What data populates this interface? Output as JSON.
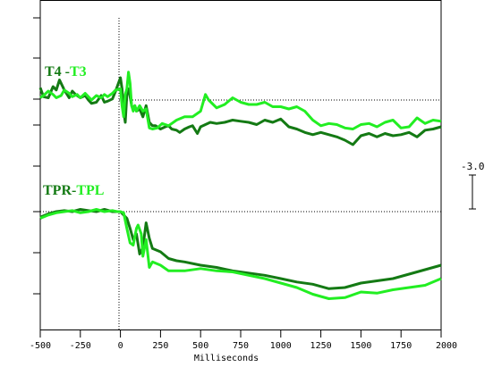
{
  "chart_data": {
    "type": "line",
    "xlabel": "Milliseconds",
    "xlim": [
      -500,
      2000
    ],
    "xticks": [
      "-500",
      "-250",
      "0",
      "250",
      "500",
      "750",
      "1000",
      "1250",
      "1500",
      "1750",
      "2000"
    ],
    "scale_bar_label": "-3.0",
    "colors": {
      "dark": "#147a14",
      "light": "#22ee22"
    },
    "panels": [
      {
        "label_parts": [
          {
            "text": "T4",
            "color": "#147a14"
          },
          {
            "text": " -",
            "color": "#147a14"
          },
          {
            "text": "T3",
            "color": "#22ee22"
          }
        ],
        "baseline": 0,
        "series": [
          {
            "color": "#147a14",
            "x": [
              -500,
              -480,
              -450,
              -420,
              -400,
              -380,
              -350,
              -320,
              -300,
              -280,
              -250,
              -220,
              -200,
              -180,
              -150,
              -120,
              -100,
              -80,
              -50,
              -30,
              0,
              10,
              20,
              30,
              40,
              50,
              60,
              70,
              80,
              90,
              100,
              120,
              140,
              160,
              180,
              200,
              220,
              250,
              280,
              300,
              320,
              350,
              370,
              400,
              430,
              450,
              480,
              500,
              530,
              560,
              600,
              650,
              700,
              750,
              800,
              850,
              900,
              950,
              1000,
              1050,
              1100,
              1150,
              1200,
              1250,
              1300,
              1350,
              1400,
              1450,
              1500,
              1550,
              1600,
              1650,
              1700,
              1750,
              1800,
              1850,
              1900,
              1950,
              2000
            ],
            "y": [
              1.1,
              0.3,
              0.2,
              1.2,
              0.9,
              1.8,
              0.9,
              0.2,
              0.8,
              0.5,
              0.2,
              0.4,
              0.0,
              -0.3,
              -0.2,
              0.4,
              -0.2,
              -0.1,
              0.1,
              0.8,
              2.0,
              1.0,
              -1.0,
              -2.0,
              0.5,
              1.0,
              0.3,
              -0.5,
              -0.8,
              -0.5,
              -1.0,
              -0.8,
              -1.5,
              -0.5,
              -2.0,
              -2.3,
              -2.3,
              -2.6,
              -2.4,
              -2.3,
              -2.6,
              -2.7,
              -2.9,
              -2.6,
              -2.4,
              -2.3,
              -3.0,
              -2.4,
              -2.2,
              -2.0,
              -2.1,
              -2.0,
              -1.8,
              -1.9,
              -2.0,
              -2.2,
              -1.8,
              -2.0,
              -1.7,
              -2.4,
              -2.6,
              -2.9,
              -3.1,
              -2.9,
              -3.1,
              -3.3,
              -3.6,
              -4.0,
              -3.2,
              -3.0,
              -3.3,
              -3.0,
              -3.2,
              -3.1,
              -2.9,
              -3.3,
              -2.7,
              -2.6,
              -2.4
            ]
          },
          {
            "color": "#22ee22",
            "x": [
              -500,
              -480,
              -450,
              -420,
              -400,
              -370,
              -350,
              -320,
              -300,
              -270,
              -250,
              -220,
              -200,
              -180,
              -150,
              -120,
              -100,
              -80,
              -50,
              -30,
              0,
              10,
              20,
              30,
              40,
              50,
              60,
              70,
              80,
              90,
              100,
              120,
              140,
              160,
              180,
              200,
              230,
              260,
              300,
              350,
              400,
              450,
              500,
              530,
              550,
              600,
              650,
              700,
              750,
              800,
              850,
              900,
              950,
              1000,
              1050,
              1100,
              1150,
              1200,
              1250,
              1300,
              1350,
              1400,
              1450,
              1500,
              1550,
              1600,
              1650,
              1700,
              1750,
              1800,
              1850,
              1900,
              1950,
              2000
            ],
            "y": [
              0.2,
              0.4,
              0.8,
              0.5,
              0.2,
              0.4,
              0.9,
              0.6,
              0.3,
              0.5,
              0.2,
              0.6,
              0.3,
              0.0,
              0.4,
              0.2,
              0.5,
              0.3,
              0.6,
              0.9,
              1.0,
              -0.5,
              -1.5,
              0.5,
              1.0,
              2.5,
              1.5,
              -0.5,
              -1.0,
              -0.5,
              -1.0,
              -0.5,
              -1.0,
              -0.8,
              -2.5,
              -2.6,
              -2.5,
              -2.1,
              -2.3,
              -1.8,
              -1.5,
              -1.5,
              -1.0,
              0.5,
              0.0,
              -0.7,
              -0.4,
              0.2,
              -0.2,
              -0.4,
              -0.4,
              -0.2,
              -0.6,
              -0.6,
              -0.8,
              -0.6,
              -1.0,
              -1.8,
              -2.3,
              -2.1,
              -2.2,
              -2.5,
              -2.6,
              -2.2,
              -2.1,
              -2.4,
              -2.0,
              -1.8,
              -2.5,
              -2.4,
              -1.6,
              -2.1,
              -1.8,
              -1.9
            ]
          }
        ]
      },
      {
        "label_parts": [
          {
            "text": "TPR",
            "color": "#147a14"
          },
          {
            "text": "-",
            "color": "#147a14"
          },
          {
            "text": "TPL",
            "color": "#22ee22"
          }
        ],
        "baseline": 0,
        "series": [
          {
            "color": "#147a14",
            "x": [
              -500,
              -450,
              -400,
              -350,
              -300,
              -250,
              -200,
              -150,
              -100,
              -50,
              -20,
              0,
              20,
              40,
              60,
              80,
              100,
              120,
              140,
              160,
              180,
              200,
              250,
              300,
              350,
              400,
              500,
              600,
              700,
              800,
              900,
              1000,
              1100,
              1200,
              1300,
              1400,
              1500,
              1600,
              1700,
              1800,
              1900,
              2000
            ],
            "y": [
              -0.5,
              -0.2,
              0.0,
              0.1,
              0.0,
              0.2,
              0.1,
              0.0,
              0.2,
              0.0,
              0.0,
              0.0,
              -0.3,
              -0.6,
              -1.5,
              -2.5,
              -2.0,
              -3.8,
              -3.2,
              -1.0,
              -2.4,
              -3.3,
              -3.6,
              -4.2,
              -4.4,
              -4.5,
              -4.8,
              -5.0,
              -5.3,
              -5.5,
              -5.7,
              -6.0,
              -6.3,
              -6.5,
              -6.9,
              -6.8,
              -6.4,
              -6.2,
              -6.0,
              -5.6,
              -5.2,
              -4.8
            ]
          },
          {
            "color": "#22ee22",
            "x": [
              -500,
              -450,
              -400,
              -350,
              -300,
              -250,
              -200,
              -150,
              -100,
              -50,
              -20,
              0,
              20,
              40,
              60,
              80,
              100,
              110,
              130,
              140,
              160,
              180,
              200,
              250,
              300,
              400,
              500,
              600,
              700,
              800,
              900,
              1000,
              1100,
              1200,
              1300,
              1400,
              1500,
              1600,
              1700,
              1800,
              1900,
              2000
            ],
            "y": [
              -0.6,
              -0.3,
              -0.1,
              0.0,
              0.1,
              -0.1,
              0.0,
              0.2,
              0.0,
              0.1,
              0.0,
              0.0,
              -0.1,
              -1.5,
              -2.8,
              -3.0,
              -1.5,
              -1.2,
              -2.0,
              -4.0,
              -2.5,
              -5.0,
              -4.5,
              -4.8,
              -5.3,
              -5.3,
              -5.1,
              -5.3,
              -5.4,
              -5.7,
              -6.0,
              -6.4,
              -6.8,
              -7.4,
              -7.8,
              -7.7,
              -7.2,
              -7.3,
              -7.0,
              -6.8,
              -6.6,
              -6.0
            ]
          }
        ]
      }
    ]
  }
}
